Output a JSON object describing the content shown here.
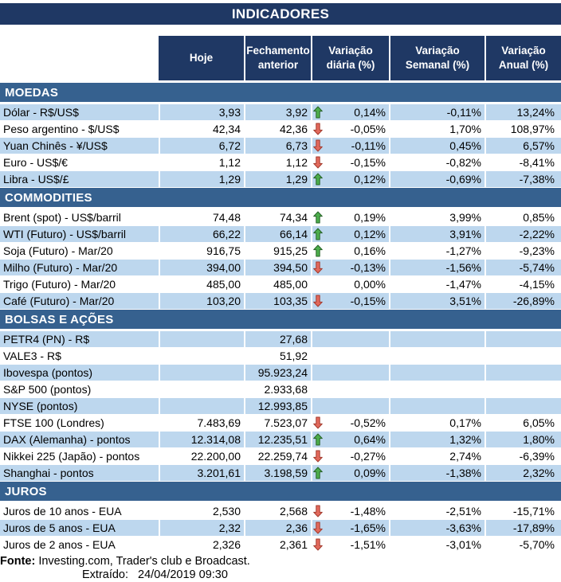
{
  "title": "INDICADORES",
  "columns": [
    "Hoje",
    "Fechamento anterior",
    "Variação diária (%)",
    "Variação Semanal (%)",
    "Variação Anual (%)"
  ],
  "sections": [
    {
      "name": "MOEDAS",
      "rows": [
        {
          "label": "Dólar - R$/US$",
          "hoje": "3,93",
          "fechamento": "3,92",
          "arrow": "up",
          "var_diaria": "0,14%",
          "var_semanal": "-0,11%",
          "var_anual": "13,24%"
        },
        {
          "label": "Peso argentino - $/US$",
          "hoje": "42,34",
          "fechamento": "42,36",
          "arrow": "down",
          "var_diaria": "-0,05%",
          "var_semanal": "1,70%",
          "var_anual": "108,97%"
        },
        {
          "label": "Yuan Chinês - ¥/US$",
          "hoje": "6,72",
          "fechamento": "6,73",
          "arrow": "down",
          "var_diaria": "-0,11%",
          "var_semanal": "0,45%",
          "var_anual": "6,57%"
        },
        {
          "label": "Euro - US$/€",
          "hoje": "1,12",
          "fechamento": "1,12",
          "arrow": "down",
          "var_diaria": "-0,15%",
          "var_semanal": "-0,82%",
          "var_anual": "-8,41%"
        },
        {
          "label": "Libra - US$/£",
          "hoje": "1,29",
          "fechamento": "1,29",
          "arrow": "up",
          "var_diaria": "0,12%",
          "var_semanal": "-0,69%",
          "var_anual": "-7,38%"
        }
      ]
    },
    {
      "name": "COMMODITIES",
      "rows": [
        {
          "label": "Brent (spot) - US$/barril",
          "hoje": "74,48",
          "fechamento": "74,34",
          "arrow": "up",
          "var_diaria": "0,19%",
          "var_semanal": "3,99%",
          "var_anual": "0,85%"
        },
        {
          "label": "WTI (Futuro) - US$/barril",
          "hoje": "66,22",
          "fechamento": "66,14",
          "arrow": "up",
          "var_diaria": "0,12%",
          "var_semanal": "3,91%",
          "var_anual": "-2,22%"
        },
        {
          "label": "Soja (Futuro) - Mar/20",
          "hoje": "916,75",
          "fechamento": "915,25",
          "arrow": "up",
          "var_diaria": "0,16%",
          "var_semanal": "-1,27%",
          "var_anual": "-9,23%"
        },
        {
          "label": "Milho (Futuro) - Mar/20",
          "hoje": "394,00",
          "fechamento": "394,50",
          "arrow": "down",
          "var_diaria": "-0,13%",
          "var_semanal": "-1,56%",
          "var_anual": "-5,74%"
        },
        {
          "label": "Trigo (Futuro) - Mar/20",
          "hoje": "485,00",
          "fechamento": "485,00",
          "arrow": "",
          "var_diaria": "0,00%",
          "var_semanal": "-1,47%",
          "var_anual": "-4,15%"
        },
        {
          "label": "Café (Futuro) - Mar/20",
          "hoje": "103,20",
          "fechamento": "103,35",
          "arrow": "down",
          "var_diaria": "-0,15%",
          "var_semanal": "3,51%",
          "var_anual": "-26,89%"
        }
      ]
    },
    {
      "name": "BOLSAS E AÇÕES",
      "rows": [
        {
          "label": "PETR4 (PN) - R$",
          "hoje": "",
          "fechamento": "27,68",
          "arrow": "",
          "var_diaria": "",
          "var_semanal": "",
          "var_anual": ""
        },
        {
          "label": "VALE3 - R$",
          "hoje": "",
          "fechamento": "51,92",
          "arrow": "",
          "var_diaria": "",
          "var_semanal": "",
          "var_anual": ""
        },
        {
          "label": "Ibovespa (pontos)",
          "hoje": "",
          "fechamento": "95.923,24",
          "arrow": "",
          "var_diaria": "",
          "var_semanal": "",
          "var_anual": ""
        },
        {
          "label": "S&P 500 (pontos)",
          "hoje": "",
          "fechamento": "2.933,68",
          "arrow": "",
          "var_diaria": "",
          "var_semanal": "",
          "var_anual": ""
        },
        {
          "label": "NYSE (pontos)",
          "hoje": "",
          "fechamento": "12.993,85",
          "arrow": "",
          "var_diaria": "",
          "var_semanal": "",
          "var_anual": ""
        },
        {
          "label": "FTSE 100 (Londres)",
          "hoje": "7.483,69",
          "fechamento": "7.523,07",
          "arrow": "down",
          "var_diaria": "-0,52%",
          "var_semanal": "0,17%",
          "var_anual": "6,05%"
        },
        {
          "label": "DAX (Alemanha) - pontos",
          "hoje": "12.314,08",
          "fechamento": "12.235,51",
          "arrow": "up",
          "var_diaria": "0,64%",
          "var_semanal": "1,32%",
          "var_anual": "1,80%"
        },
        {
          "label": "Nikkei 225 (Japão) - pontos",
          "hoje": "22.200,00",
          "fechamento": "22.259,74",
          "arrow": "down",
          "var_diaria": "-0,27%",
          "var_semanal": "2,74%",
          "var_anual": "-6,39%"
        },
        {
          "label": "Shanghai - pontos",
          "hoje": "3.201,61",
          "fechamento": "3.198,59",
          "arrow": "up",
          "var_diaria": "0,09%",
          "var_semanal": "-1,38%",
          "var_anual": "2,32%"
        }
      ]
    },
    {
      "name": "JUROS",
      "rows": [
        {
          "label": "Juros de 10 anos - EUA",
          "hoje": "2,530",
          "fechamento": "2,568",
          "arrow": "down",
          "var_diaria": "-1,48%",
          "var_semanal": "-2,51%",
          "var_anual": "-15,71%"
        },
        {
          "label": "Juros de 5 anos - EUA",
          "hoje": "2,32",
          "fechamento": "2,36",
          "arrow": "down",
          "var_diaria": "-1,65%",
          "var_semanal": "-3,63%",
          "var_anual": "-17,89%"
        },
        {
          "label": "Juros de 2 anos - EUA",
          "hoje": "2,326",
          "fechamento": "2,361",
          "arrow": "down",
          "var_diaria": "-1,51%",
          "var_semanal": "-3,01%",
          "var_anual": "-5,70%"
        }
      ]
    }
  ],
  "footer": {
    "fonte_label": "Fonte:",
    "fonte_text": " Investing.com, Trader's club e Broadcast.",
    "extraido_label": "Extraído:",
    "extraido_value": "24/04/2019 09:30"
  },
  "colors": {
    "navy": "#1F3864",
    "section": "#36618F",
    "rowblue": "#BDD7EE",
    "arrow_up_fill": "#4DAE4C",
    "arrow_up_border": "#276327",
    "arrow_down_fill": "#E2695C",
    "arrow_down_border": "#A33B2E"
  }
}
